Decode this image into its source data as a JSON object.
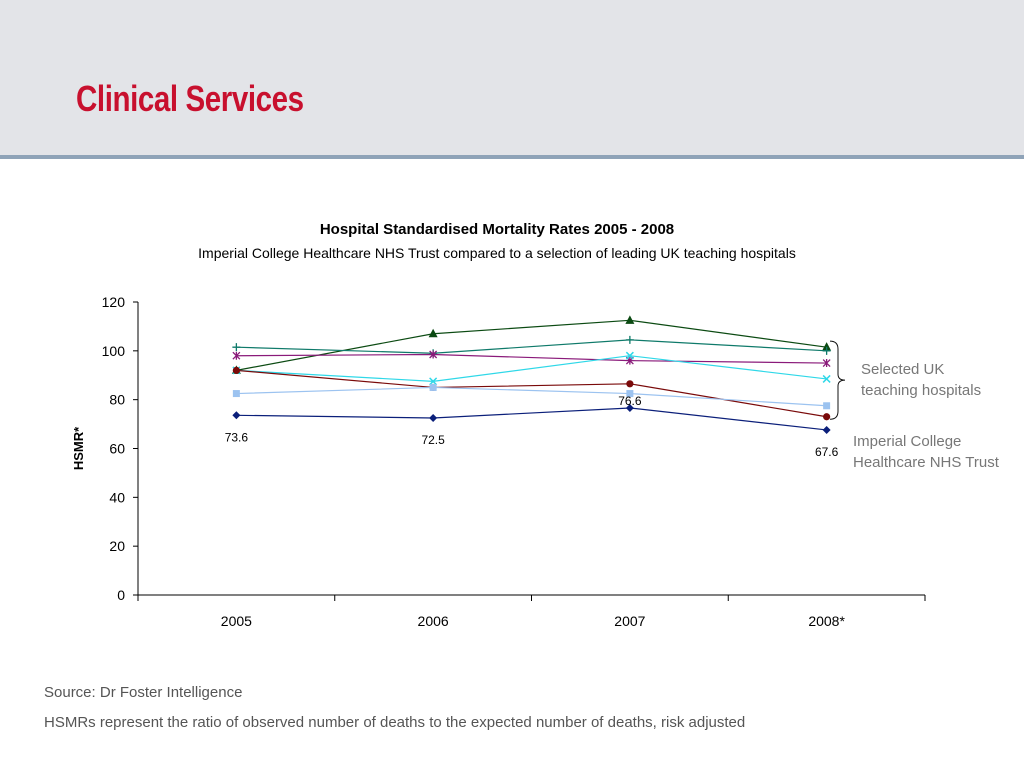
{
  "slide": {
    "title": "Clinical Services",
    "footer_source": "Source: Dr Foster Intelligence",
    "footer_note": "HSMRs represent the ratio of observed number of deaths to the expected number of deaths, risk adjusted"
  },
  "colors": {
    "header_bg": "#e3e4e8",
    "header_border": "#8fa3b8",
    "title": "#c8102e"
  },
  "chart_data": {
    "type": "line",
    "title": "Hospital Standardised Mortality Rates 2005 - 2008",
    "subtitle": "Imperial College Healthcare NHS Trust compared to a selection of leading UK teaching hospitals",
    "xlabel": "",
    "ylabel": "HSMR*",
    "categories": [
      "2005",
      "2006",
      "2007",
      "2008*"
    ],
    "ylim": [
      0,
      120
    ],
    "yticks": [
      0,
      20,
      40,
      60,
      80,
      100,
      120
    ],
    "grid": false,
    "series": [
      {
        "values": [
          73.6,
          72.5,
          76.6,
          67.6
        ],
        "color": "#0b1f7a",
        "marker": "diamond",
        "labels": [
          "73.6",
          "72.5",
          "76.6",
          "67.6"
        ]
      },
      {
        "values": [
          82.5,
          85,
          82.5,
          77.5
        ],
        "color": "#9cc3f0",
        "marker": "square"
      },
      {
        "values": [
          92,
          85,
          86.5,
          73
        ],
        "color": "#7a0a0a",
        "marker": "circle"
      },
      {
        "values": [
          92,
          87.5,
          98,
          88.5
        ],
        "color": "#2fd8e8",
        "marker": "x"
      },
      {
        "values": [
          98,
          98.5,
          96,
          95
        ],
        "color": "#8a1a7a",
        "marker": "star"
      },
      {
        "values": [
          101.5,
          99,
          104.5,
          100
        ],
        "color": "#0f7a6a",
        "marker": "plus"
      },
      {
        "values": [
          92,
          107,
          112.5,
          101.5
        ],
        "color": "#0b4a12",
        "marker": "triangle"
      }
    ],
    "annotations": [
      {
        "text": "Selected UK teaching hospitals",
        "lines": [
          "Selected UK",
          "teaching hospitals"
        ]
      },
      {
        "text": "Imperial College Healthcare NHS Trust",
        "lines": [
          "Imperial College",
          "Healthcare NHS Trust"
        ]
      }
    ]
  }
}
